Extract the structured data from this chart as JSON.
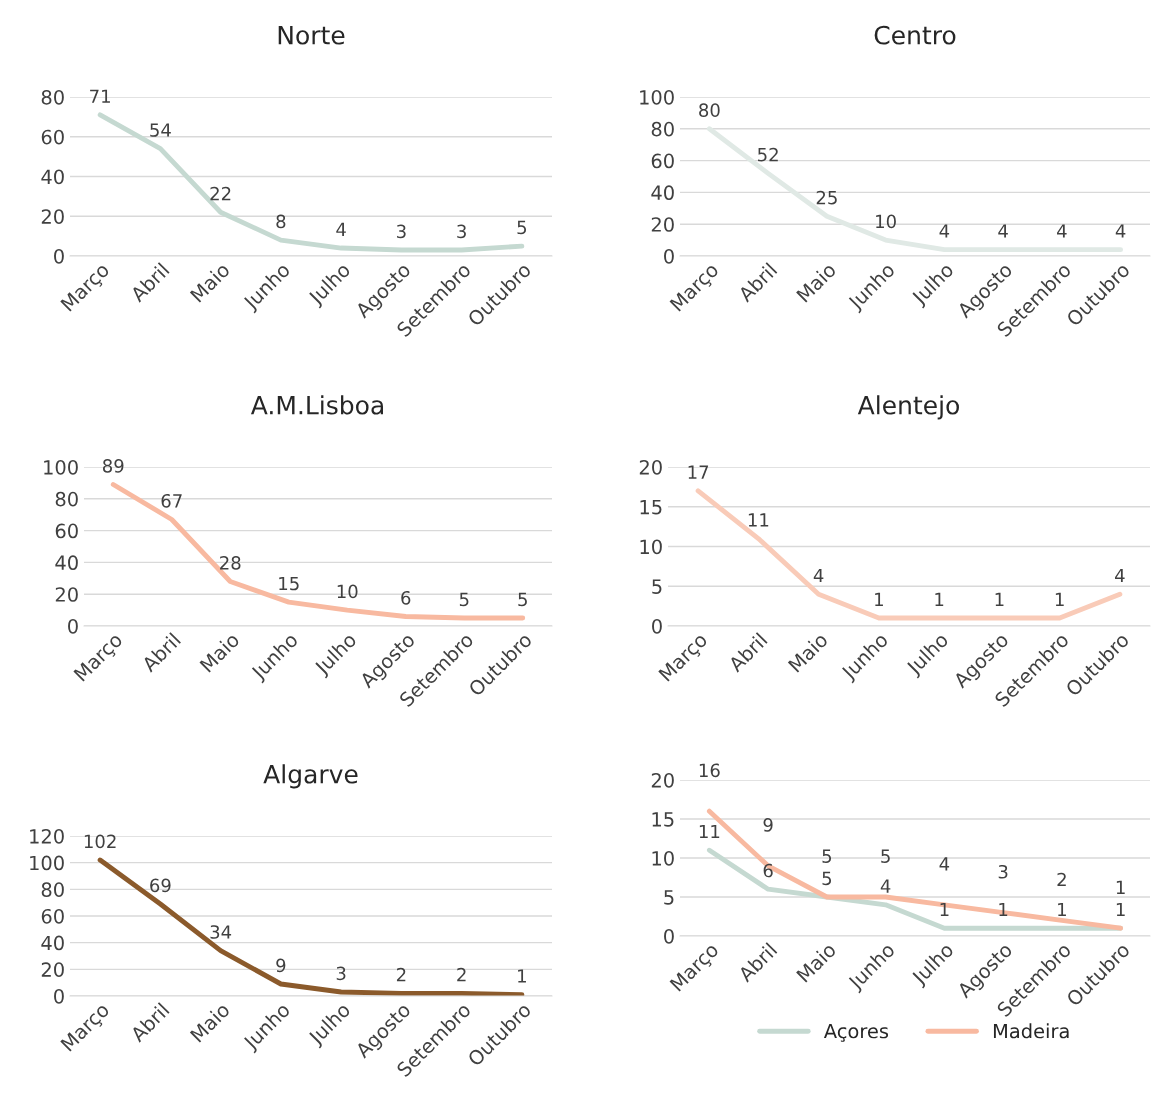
{
  "chart_data": [
    {
      "type": "line",
      "title": "Norte",
      "categories": [
        "Março",
        "Abril",
        "Maio",
        "Junho",
        "Julho",
        "Agosto",
        "Setembro",
        "Outubro"
      ],
      "series": [
        {
          "color": "#c5d9d1",
          "values": [
            71,
            54,
            22,
            8,
            4,
            3,
            3,
            5
          ]
        }
      ],
      "ylim": [
        0,
        80
      ],
      "yticks": [
        0,
        20,
        40,
        60,
        80
      ],
      "grid": "y",
      "data_labels": true
    },
    {
      "type": "line",
      "title": "Centro",
      "categories": [
        "Março",
        "Abril",
        "Maio",
        "Junho",
        "Julho",
        "Agosto",
        "Setembro",
        "Outubro"
      ],
      "series": [
        {
          "color": "#e0e9e5",
          "values": [
            80,
            52,
            25,
            10,
            4,
            4,
            4,
            4
          ]
        }
      ],
      "ylim": [
        0,
        100
      ],
      "yticks": [
        0,
        20,
        40,
        60,
        80,
        100
      ],
      "grid": "y",
      "data_labels": true
    },
    {
      "type": "line",
      "title": "A.M.Lisboa",
      "categories": [
        "Março",
        "Abril",
        "Maio",
        "Junho",
        "Julho",
        "Agosto",
        "Setembro",
        "Outubro"
      ],
      "series": [
        {
          "color": "#f8b9a0",
          "values": [
            89,
            67,
            28,
            15,
            10,
            6,
            5,
            5
          ]
        }
      ],
      "ylim": [
        0,
        100
      ],
      "yticks": [
        0,
        20,
        40,
        60,
        80,
        100
      ],
      "grid": "y",
      "data_labels": true
    },
    {
      "type": "line",
      "title": "Alentejo",
      "categories": [
        "Março",
        "Abril",
        "Maio",
        "Junho",
        "Julho",
        "Agosto",
        "Setembro",
        "Outubro"
      ],
      "series": [
        {
          "color": "#f9cbb8",
          "values": [
            17,
            11,
            4,
            1,
            1,
            1,
            1,
            4
          ]
        }
      ],
      "ylim": [
        0,
        20
      ],
      "yticks": [
        0,
        5,
        10,
        15,
        20
      ],
      "grid": "y",
      "data_labels": true
    },
    {
      "type": "line",
      "title": "Algarve",
      "categories": [
        "Março",
        "Abril",
        "Maio",
        "Junho",
        "Julho",
        "Agosto",
        "Setembro",
        "Outubro"
      ],
      "series": [
        {
          "color": "#8b5a2b",
          "values": [
            102,
            69,
            34,
            9,
            3,
            2,
            2,
            1
          ]
        }
      ],
      "ylim": [
        0,
        120
      ],
      "yticks": [
        0,
        20,
        40,
        60,
        80,
        100,
        120
      ],
      "grid": "y",
      "data_labels": true
    },
    {
      "type": "line",
      "categories": [
        "Março",
        "Abril",
        "Maio",
        "Junho",
        "Julho",
        "Agosto",
        "Setembro",
        "Outubro"
      ],
      "series": [
        {
          "name": "Açores",
          "color": "#c5d9d1",
          "values": [
            11,
            6,
            5,
            4,
            1,
            1,
            1,
            1
          ]
        },
        {
          "name": "Madeira",
          "color": "#f8b9a0",
          "values": [
            16,
            9,
            5,
            5,
            4,
            3,
            2,
            1
          ]
        }
      ],
      "ylim": [
        0,
        20
      ],
      "yticks": [
        0,
        5,
        10,
        15,
        20
      ],
      "grid": "y",
      "data_labels": true,
      "legend": "bottom"
    }
  ]
}
